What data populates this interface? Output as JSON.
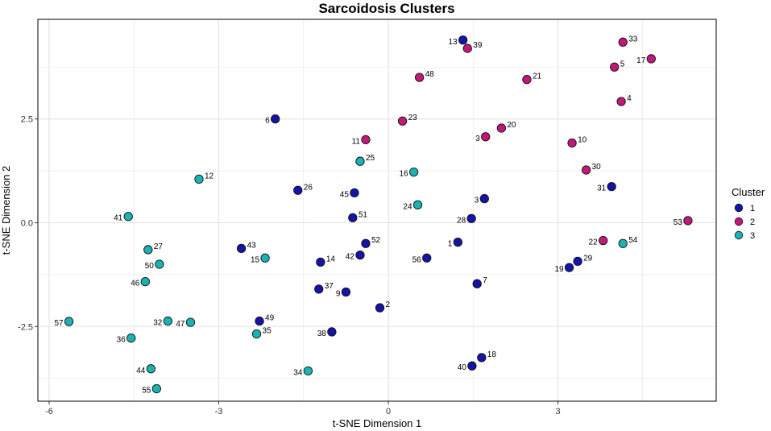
{
  "chart_data": {
    "type": "scatter",
    "title": "Sarcoidosis Clusters",
    "xlabel": "t-SNE Dimension 1",
    "ylabel": "t-SNE Dimension 2",
    "xlim": [
      -6.2,
      5.8
    ],
    "ylim": [
      -4.3,
      4.9
    ],
    "xticks": [
      -6,
      -3,
      0,
      3
    ],
    "yticks": [
      -2.5,
      0.0,
      2.5
    ],
    "ytick_labels": [
      "-2.5",
      "0.0",
      "2.5"
    ],
    "grid": true,
    "legend_position": "right",
    "legend_title": "Cluster",
    "series": [
      {
        "name": "1",
        "color": "#1414a8",
        "points": [
          {
            "label": "13",
            "x": 1.32,
            "y": 4.4
          },
          {
            "label": "6",
            "x": -2.0,
            "y": 2.5
          },
          {
            "label": "26",
            "x": -1.6,
            "y": 0.78
          },
          {
            "label": "45",
            "x": -0.6,
            "y": 0.72
          },
          {
            "label": "51",
            "x": -0.63,
            "y": 0.12
          },
          {
            "label": "3",
            "x": 1.7,
            "y": 0.58
          },
          {
            "label": "28",
            "x": 1.47,
            "y": 0.1
          },
          {
            "label": "1",
            "x": 1.23,
            "y": -0.47
          },
          {
            "label": "52",
            "x": -0.4,
            "y": -0.5
          },
          {
            "label": "42",
            "x": -0.5,
            "y": -0.78
          },
          {
            "label": "56",
            "x": 0.68,
            "y": -0.85
          },
          {
            "label": "43",
            "x": -2.6,
            "y": -0.62
          },
          {
            "label": "14",
            "x": -1.2,
            "y": -0.95
          },
          {
            "label": "37",
            "x": -1.23,
            "y": -1.6
          },
          {
            "label": "9",
            "x": -0.75,
            "y": -1.67
          },
          {
            "label": "7",
            "x": 1.57,
            "y": -1.47
          },
          {
            "label": "2",
            "x": -0.15,
            "y": -2.05
          },
          {
            "label": "49",
            "x": -2.28,
            "y": -2.37
          },
          {
            "label": "38",
            "x": -1.0,
            "y": -2.63
          },
          {
            "label": "18",
            "x": 1.65,
            "y": -3.25
          },
          {
            "label": "40",
            "x": 1.48,
            "y": -3.45
          },
          {
            "label": "31",
            "x": 3.95,
            "y": 0.87
          },
          {
            "label": "29",
            "x": 3.35,
            "y": -0.93
          },
          {
            "label": "19",
            "x": 3.2,
            "y": -1.08
          }
        ]
      },
      {
        "name": "2",
        "color": "#c2187a",
        "points": [
          {
            "label": "39",
            "x": 1.4,
            "y": 4.2
          },
          {
            "label": "48",
            "x": 0.55,
            "y": 3.5
          },
          {
            "label": "21",
            "x": 2.45,
            "y": 3.45
          },
          {
            "label": "33",
            "x": 4.15,
            "y": 4.35
          },
          {
            "label": "5",
            "x": 4.0,
            "y": 3.75
          },
          {
            "label": "17",
            "x": 4.65,
            "y": 3.95
          },
          {
            "label": "4",
            "x": 4.12,
            "y": 2.92
          },
          {
            "label": "23",
            "x": 0.25,
            "y": 2.45
          },
          {
            "label": "11",
            "x": -0.4,
            "y": 2.0
          },
          {
            "label": "20",
            "x": 2.0,
            "y": 2.28
          },
          {
            "label": "3",
            "x": 1.72,
            "y": 2.07
          },
          {
            "label": "10",
            "x": 3.25,
            "y": 1.92
          },
          {
            "label": "30",
            "x": 3.5,
            "y": 1.27
          },
          {
            "label": "22",
            "x": 3.8,
            "y": -0.43
          },
          {
            "label": "53",
            "x": 5.3,
            "y": 0.05
          }
        ]
      },
      {
        "name": "3",
        "color": "#1ab3b3",
        "points": [
          {
            "label": "25",
            "x": -0.5,
            "y": 1.48
          },
          {
            "label": "16",
            "x": 0.45,
            "y": 1.22
          },
          {
            "label": "24",
            "x": 0.52,
            "y": 0.43
          },
          {
            "label": "12",
            "x": -3.35,
            "y": 1.05
          },
          {
            "label": "41",
            "x": -4.6,
            "y": 0.15
          },
          {
            "label": "27",
            "x": -4.25,
            "y": -0.65
          },
          {
            "label": "50",
            "x": -4.05,
            "y": -1.0
          },
          {
            "label": "46",
            "x": -4.3,
            "y": -1.42
          },
          {
            "label": "15",
            "x": -2.18,
            "y": -0.85
          },
          {
            "label": "57",
            "x": -5.65,
            "y": -2.38
          },
          {
            "label": "32",
            "x": -3.9,
            "y": -2.37
          },
          {
            "label": "47",
            "x": -3.5,
            "y": -2.4
          },
          {
            "label": "36",
            "x": -4.55,
            "y": -2.78
          },
          {
            "label": "35",
            "x": -2.33,
            "y": -2.68
          },
          {
            "label": "44",
            "x": -4.2,
            "y": -3.52
          },
          {
            "label": "55",
            "x": -4.1,
            "y": -4.0
          },
          {
            "label": "34",
            "x": -1.42,
            "y": -3.57
          },
          {
            "label": "54",
            "x": 4.15,
            "y": -0.5
          }
        ]
      }
    ]
  }
}
